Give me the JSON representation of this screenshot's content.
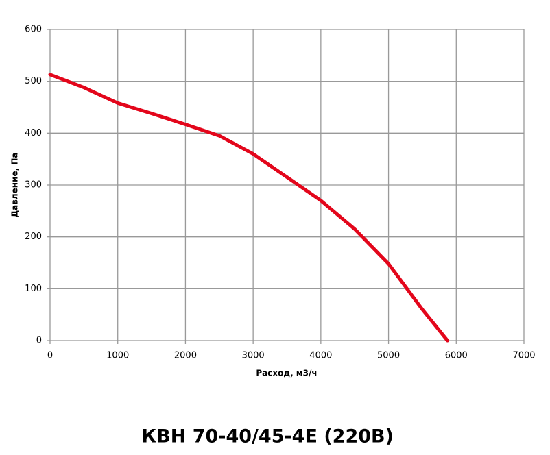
{
  "chart_data": {
    "type": "line",
    "title": "КВН 70-40/45-4E (220В)",
    "x_label": "Расход, м3/ч",
    "y_label": "Давление, Па",
    "x": [
      0,
      500,
      1000,
      1500,
      2000,
      2500,
      3000,
      3500,
      4000,
      4500,
      5000,
      5500,
      5870
    ],
    "values": [
      513,
      488,
      458,
      438,
      417,
      395,
      360,
      315,
      270,
      215,
      148,
      60,
      0
    ],
    "color": "#e3061b",
    "xlim": [
      0,
      7000
    ],
    "xticks": [
      0,
      1000,
      2000,
      3000,
      4000,
      5000,
      6000,
      7000
    ],
    "ylim": [
      0,
      600
    ],
    "yticks": [
      0,
      100,
      200,
      300,
      400,
      500,
      600
    ],
    "grid": true
  }
}
